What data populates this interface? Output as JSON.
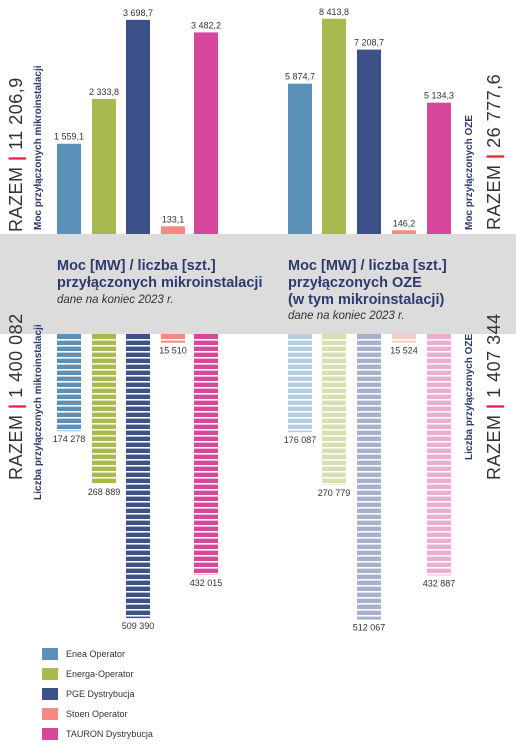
{
  "colors": {
    "enea": "#5b91b8",
    "energa": "#a7b94f",
    "pge": "#3d5189",
    "stoen": "#f48a82",
    "tauron": "#d7479c",
    "accent_red": "#e2233b",
    "title_navy": "#2d3a6e",
    "band_gray": "#dcdcdc"
  },
  "left_panel": {
    "title_line1": "Moc [MW] / liczba [szt.]",
    "title_line2": "przyłączonych mikroinstalacji",
    "subtitle": "dane na koniec 2023 r.",
    "top_total_prefix": "RAZEM",
    "top_total_value": "11 206,9",
    "top_axis_label": "Moc przyłączonych mikroinstalacji",
    "bottom_total_prefix": "RAZEM",
    "bottom_total_value": "1 400 082",
    "bottom_axis_label": "Liczba przyłączonych mikroinstalacji"
  },
  "right_panel": {
    "title_line1": "Moc [MW] / liczba [szt.]",
    "title_line2": "przyłączonych OZE",
    "title_line3": "(w tym mikroinstalacji)",
    "subtitle": "dane na koniec 2023 r.",
    "top_total_prefix": "RAZEM",
    "top_total_value": "26 777,6",
    "top_axis_label": "Moc przyłączonych OZE",
    "bottom_total_prefix": "RAZEM",
    "bottom_total_value": "1 407 344",
    "bottom_axis_label": "Liczba przyłączonych OZE"
  },
  "legend": [
    {
      "key": "enea",
      "label": "Enea Operator"
    },
    {
      "key": "energa",
      "label": "Energa-Operator"
    },
    {
      "key": "pge",
      "label": "PGE Dystrybucja"
    },
    {
      "key": "stoen",
      "label": "Stoen Operator"
    },
    {
      "key": "tauron",
      "label": "TAURON Dystrybucja"
    }
  ],
  "chart_data": [
    {
      "type": "bar",
      "panel": "left",
      "measure": "power_MW",
      "categories": [
        "Enea Operator",
        "Energa-Operator",
        "PGE Dystrybucja",
        "Stoen Operator",
        "TAURON Dystrybucja"
      ],
      "values": [
        1559.1,
        2333.8,
        3698.7,
        133.1,
        3482.2
      ],
      "labels": [
        "1 559,1",
        "2 333,8",
        "3 698,7",
        "133,1",
        "3 482,2"
      ],
      "ylim": [
        0,
        3800
      ]
    },
    {
      "type": "bar",
      "panel": "left",
      "measure": "count",
      "categories": [
        "Enea Operator",
        "Energa-Operator",
        "PGE Dystrybucja",
        "Stoen Operator",
        "TAURON Dystrybucja"
      ],
      "values": [
        174278,
        268889,
        509390,
        15510,
        432015
      ],
      "labels": [
        "174 278",
        "268 889",
        "509 390",
        "15 510",
        "432 015"
      ],
      "ylim": [
        0,
        520000
      ]
    },
    {
      "type": "bar",
      "panel": "right",
      "measure": "power_MW",
      "categories": [
        "Enea Operator",
        "Energa-Operator",
        "PGE Dystrybucja",
        "Stoen Operator",
        "TAURON Dystrybucja"
      ],
      "values": [
        5874.7,
        8413.8,
        7208.7,
        146.2,
        5134.3
      ],
      "labels": [
        "5 874,7",
        "8 413,8",
        "7 208,7",
        "146,2",
        "5 134,3"
      ],
      "ylim": [
        0,
        8600
      ]
    },
    {
      "type": "bar",
      "panel": "right",
      "measure": "count",
      "categories": [
        "Enea Operator",
        "Energa-Operator",
        "PGE Dystrybucja",
        "Stoen Operator",
        "TAURON Dystrybucja"
      ],
      "values": [
        176087,
        270779,
        512067,
        15524,
        432887
      ],
      "labels": [
        "176 087",
        "270 779",
        "512 067",
        "15 524",
        "432 887"
      ],
      "ylim": [
        0,
        520000
      ]
    }
  ]
}
